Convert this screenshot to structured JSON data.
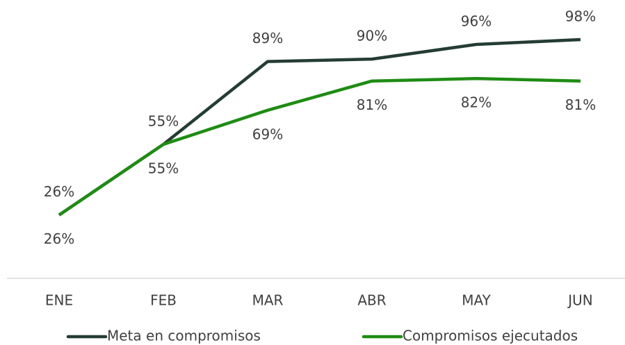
{
  "chart_data": {
    "type": "line",
    "categories": [
      "ENE",
      "FEB",
      "MAR",
      "ABR",
      "MAY",
      "JUN"
    ],
    "series": [
      {
        "name": "Meta en compromisos",
        "color": "#243d33",
        "values": [
          26,
          55,
          89,
          90,
          96,
          98
        ],
        "value_labels": [
          "26%",
          "55%",
          "89%",
          "90%",
          "96%",
          "98%"
        ]
      },
      {
        "name": "Compromisos ejecutados",
        "color": "#1f8c14",
        "values": [
          26,
          55,
          69,
          81,
          82,
          81
        ],
        "value_labels": [
          "26%",
          "55%",
          "69%",
          "81%",
          "82%",
          "81%"
        ]
      }
    ],
    "ylim": [
      0,
      100
    ]
  }
}
